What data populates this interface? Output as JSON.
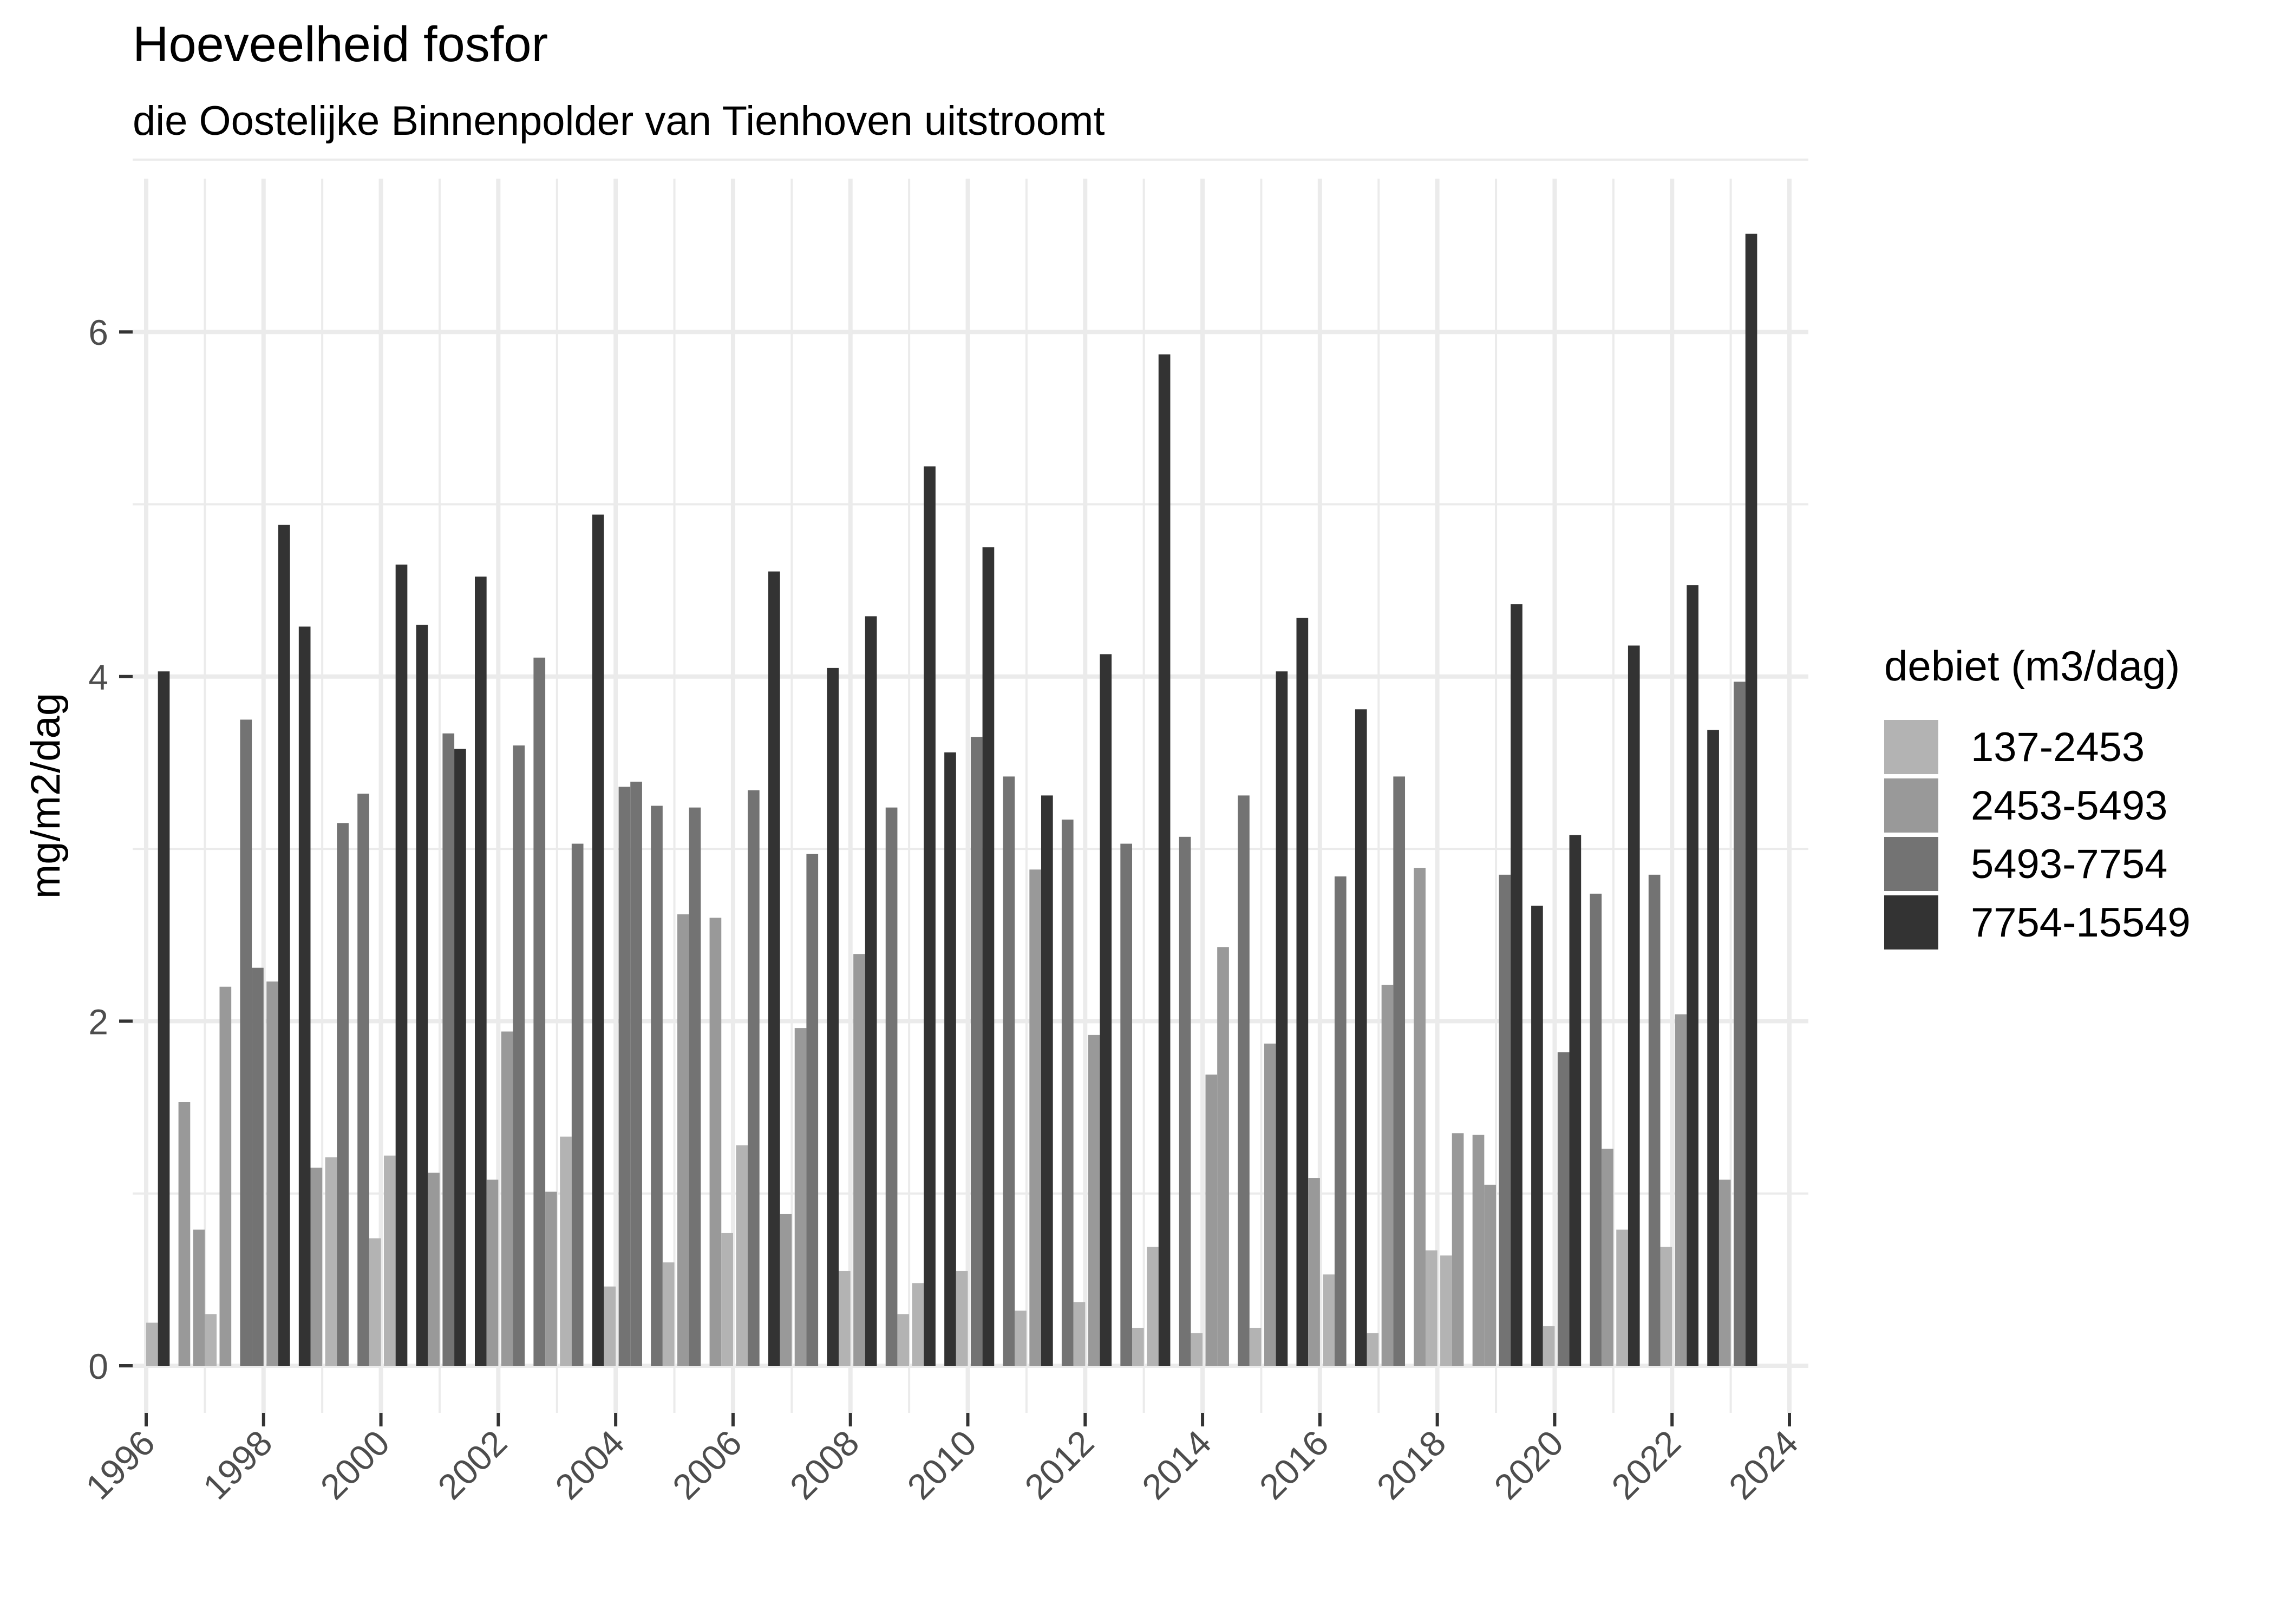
{
  "chart_data": {
    "type": "bar",
    "title": "Hoeveelheid fosfor",
    "subtitle": "die Oostelijke Binnenpolder van Tienhoven uitstroomt",
    "xlabel": "",
    "ylabel": "mg/m2/dag",
    "ylim": [
      0,
      6.6
    ],
    "xlim": [
      1996,
      2024
    ],
    "yticks": [
      0,
      2,
      4,
      6
    ],
    "xticks": [
      "1996",
      "1998",
      "2000",
      "2002",
      "2004",
      "2006",
      "2008",
      "2010",
      "2012",
      "2014",
      "2016",
      "2018",
      "2020",
      "2022",
      "2024"
    ],
    "grid": true,
    "legend": {
      "title": "debiet (m3/dag)",
      "position": "right",
      "entries": [
        {
          "label": "137-2453",
          "color": "#b3b3b3"
        },
        {
          "label": "2453-5493",
          "color": "#999999"
        },
        {
          "label": "5493-7754",
          "color": "#737373"
        },
        {
          "label": "7754-15549",
          "color": "#333333"
        }
      ]
    },
    "bars": [
      {
        "x": 1996.0,
        "value": 0.25,
        "cat": 0
      },
      {
        "x": 1996.2,
        "value": 4.03,
        "cat": 3
      },
      {
        "x": 1996.55,
        "value": 1.53,
        "cat": 1
      },
      {
        "x": 1996.8,
        "value": 0.79,
        "cat": 1
      },
      {
        "x": 1997.0,
        "value": 0.3,
        "cat": 0
      },
      {
        "x": 1997.25,
        "value": 2.2,
        "cat": 1
      },
      {
        "x": 1997.6,
        "value": 3.75,
        "cat": 2
      },
      {
        "x": 1997.8,
        "value": 2.31,
        "cat": 2
      },
      {
        "x": 1998.05,
        "value": 2.23,
        "cat": 1
      },
      {
        "x": 1998.25,
        "value": 4.88,
        "cat": 3
      },
      {
        "x": 1998.6,
        "value": 4.29,
        "cat": 3
      },
      {
        "x": 1998.8,
        "value": 1.15,
        "cat": 1
      },
      {
        "x": 1999.05,
        "value": 1.21,
        "cat": 0
      },
      {
        "x": 1999.25,
        "value": 3.15,
        "cat": 2
      },
      {
        "x": 1999.6,
        "value": 3.32,
        "cat": 2
      },
      {
        "x": 1999.8,
        "value": 0.74,
        "cat": 0
      },
      {
        "x": 2000.05,
        "value": 1.22,
        "cat": 0
      },
      {
        "x": 2000.25,
        "value": 4.65,
        "cat": 3
      },
      {
        "x": 2000.6,
        "value": 4.3,
        "cat": 3
      },
      {
        "x": 2000.8,
        "value": 1.12,
        "cat": 1
      },
      {
        "x": 2001.05,
        "value": 3.67,
        "cat": 2
      },
      {
        "x": 2001.25,
        "value": 3.58,
        "cat": 3
      },
      {
        "x": 2001.6,
        "value": 4.58,
        "cat": 3
      },
      {
        "x": 2001.8,
        "value": 1.08,
        "cat": 1
      },
      {
        "x": 2002.05,
        "value": 1.94,
        "cat": 1
      },
      {
        "x": 2002.25,
        "value": 3.6,
        "cat": 2
      },
      {
        "x": 2002.6,
        "value": 4.11,
        "cat": 2
      },
      {
        "x": 2002.8,
        "value": 1.01,
        "cat": 1
      },
      {
        "x": 2003.05,
        "value": 1.33,
        "cat": 0
      },
      {
        "x": 2003.25,
        "value": 3.03,
        "cat": 2
      },
      {
        "x": 2003.6,
        "value": 4.94,
        "cat": 3
      },
      {
        "x": 2003.8,
        "value": 0.46,
        "cat": 0
      },
      {
        "x": 2004.05,
        "value": 3.36,
        "cat": 2
      },
      {
        "x": 2004.25,
        "value": 3.39,
        "cat": 2
      },
      {
        "x": 2004.6,
        "value": 3.25,
        "cat": 2
      },
      {
        "x": 2004.8,
        "value": 0.6,
        "cat": 0
      },
      {
        "x": 2005.05,
        "value": 2.62,
        "cat": 1
      },
      {
        "x": 2005.25,
        "value": 3.24,
        "cat": 2
      },
      {
        "x": 2005.6,
        "value": 2.6,
        "cat": 1
      },
      {
        "x": 2005.8,
        "value": 0.77,
        "cat": 0
      },
      {
        "x": 2006.05,
        "value": 1.28,
        "cat": 0
      },
      {
        "x": 2006.25,
        "value": 3.34,
        "cat": 2
      },
      {
        "x": 2006.6,
        "value": 4.61,
        "cat": 3
      },
      {
        "x": 2006.8,
        "value": 0.88,
        "cat": 1
      },
      {
        "x": 2007.05,
        "value": 1.96,
        "cat": 1
      },
      {
        "x": 2007.25,
        "value": 2.97,
        "cat": 2
      },
      {
        "x": 2007.6,
        "value": 4.05,
        "cat": 3
      },
      {
        "x": 2007.8,
        "value": 0.55,
        "cat": 0
      },
      {
        "x": 2008.05,
        "value": 2.39,
        "cat": 1
      },
      {
        "x": 2008.25,
        "value": 4.35,
        "cat": 3
      },
      {
        "x": 2008.6,
        "value": 3.24,
        "cat": 2
      },
      {
        "x": 2008.8,
        "value": 0.3,
        "cat": 0
      },
      {
        "x": 2009.05,
        "value": 0.48,
        "cat": 0
      },
      {
        "x": 2009.25,
        "value": 5.22,
        "cat": 3
      },
      {
        "x": 2009.6,
        "value": 3.56,
        "cat": 3
      },
      {
        "x": 2009.8,
        "value": 0.55,
        "cat": 0
      },
      {
        "x": 2010.05,
        "value": 3.65,
        "cat": 2
      },
      {
        "x": 2010.25,
        "value": 4.75,
        "cat": 3
      },
      {
        "x": 2010.6,
        "value": 3.42,
        "cat": 2
      },
      {
        "x": 2010.8,
        "value": 0.32,
        "cat": 0
      },
      {
        "x": 2011.05,
        "value": 2.88,
        "cat": 1
      },
      {
        "x": 2011.25,
        "value": 3.31,
        "cat": 3
      },
      {
        "x": 2011.6,
        "value": 3.17,
        "cat": 2
      },
      {
        "x": 2011.8,
        "value": 0.37,
        "cat": 0
      },
      {
        "x": 2012.05,
        "value": 1.92,
        "cat": 1
      },
      {
        "x": 2012.25,
        "value": 4.13,
        "cat": 3
      },
      {
        "x": 2012.6,
        "value": 3.03,
        "cat": 2
      },
      {
        "x": 2012.8,
        "value": 0.22,
        "cat": 0
      },
      {
        "x": 2013.05,
        "value": 0.69,
        "cat": 0
      },
      {
        "x": 2013.25,
        "value": 5.87,
        "cat": 3
      },
      {
        "x": 2013.6,
        "value": 3.07,
        "cat": 2
      },
      {
        "x": 2013.8,
        "value": 0.19,
        "cat": 0
      },
      {
        "x": 2014.05,
        "value": 1.69,
        "cat": 1
      },
      {
        "x": 2014.25,
        "value": 2.43,
        "cat": 1
      },
      {
        "x": 2014.6,
        "value": 3.31,
        "cat": 2
      },
      {
        "x": 2014.8,
        "value": 0.22,
        "cat": 0
      },
      {
        "x": 2015.05,
        "value": 1.87,
        "cat": 1
      },
      {
        "x": 2015.25,
        "value": 4.03,
        "cat": 3
      },
      {
        "x": 2015.6,
        "value": 4.34,
        "cat": 3
      },
      {
        "x": 2015.8,
        "value": 1.09,
        "cat": 1
      },
      {
        "x": 2016.05,
        "value": 0.53,
        "cat": 0
      },
      {
        "x": 2016.25,
        "value": 2.84,
        "cat": 2
      },
      {
        "x": 2016.6,
        "value": 3.81,
        "cat": 3
      },
      {
        "x": 2016.8,
        "value": 0.19,
        "cat": 0
      },
      {
        "x": 2017.05,
        "value": 2.21,
        "cat": 1
      },
      {
        "x": 2017.25,
        "value": 3.42,
        "cat": 2
      },
      {
        "x": 2017.6,
        "value": 2.89,
        "cat": 1
      },
      {
        "x": 2017.8,
        "value": 0.67,
        "cat": 0
      },
      {
        "x": 2018.05,
        "value": 0.64,
        "cat": 0
      },
      {
        "x": 2018.25,
        "value": 1.35,
        "cat": 1
      },
      {
        "x": 2018.6,
        "value": 1.34,
        "cat": 1
      },
      {
        "x": 2018.8,
        "value": 1.05,
        "cat": 1
      },
      {
        "x": 2019.05,
        "value": 2.85,
        "cat": 2
      },
      {
        "x": 2019.25,
        "value": 4.42,
        "cat": 3
      },
      {
        "x": 2019.6,
        "value": 2.67,
        "cat": 3
      },
      {
        "x": 2019.8,
        "value": 0.23,
        "cat": 0
      },
      {
        "x": 2020.05,
        "value": 1.82,
        "cat": 2
      },
      {
        "x": 2020.25,
        "value": 3.08,
        "cat": 3
      },
      {
        "x": 2020.6,
        "value": 2.74,
        "cat": 2
      },
      {
        "x": 2020.8,
        "value": 1.26,
        "cat": 1
      },
      {
        "x": 2021.05,
        "value": 0.79,
        "cat": 0
      },
      {
        "x": 2021.25,
        "value": 4.18,
        "cat": 3
      },
      {
        "x": 2021.6,
        "value": 2.85,
        "cat": 2
      },
      {
        "x": 2021.8,
        "value": 0.69,
        "cat": 0
      },
      {
        "x": 2022.05,
        "value": 2.04,
        "cat": 1
      },
      {
        "x": 2022.25,
        "value": 4.53,
        "cat": 3
      },
      {
        "x": 2022.6,
        "value": 3.69,
        "cat": 3
      },
      {
        "x": 2022.8,
        "value": 1.08,
        "cat": 1
      },
      {
        "x": 2023.05,
        "value": 3.97,
        "cat": 2
      },
      {
        "x": 2023.25,
        "value": 6.57,
        "cat": 3
      }
    ]
  }
}
